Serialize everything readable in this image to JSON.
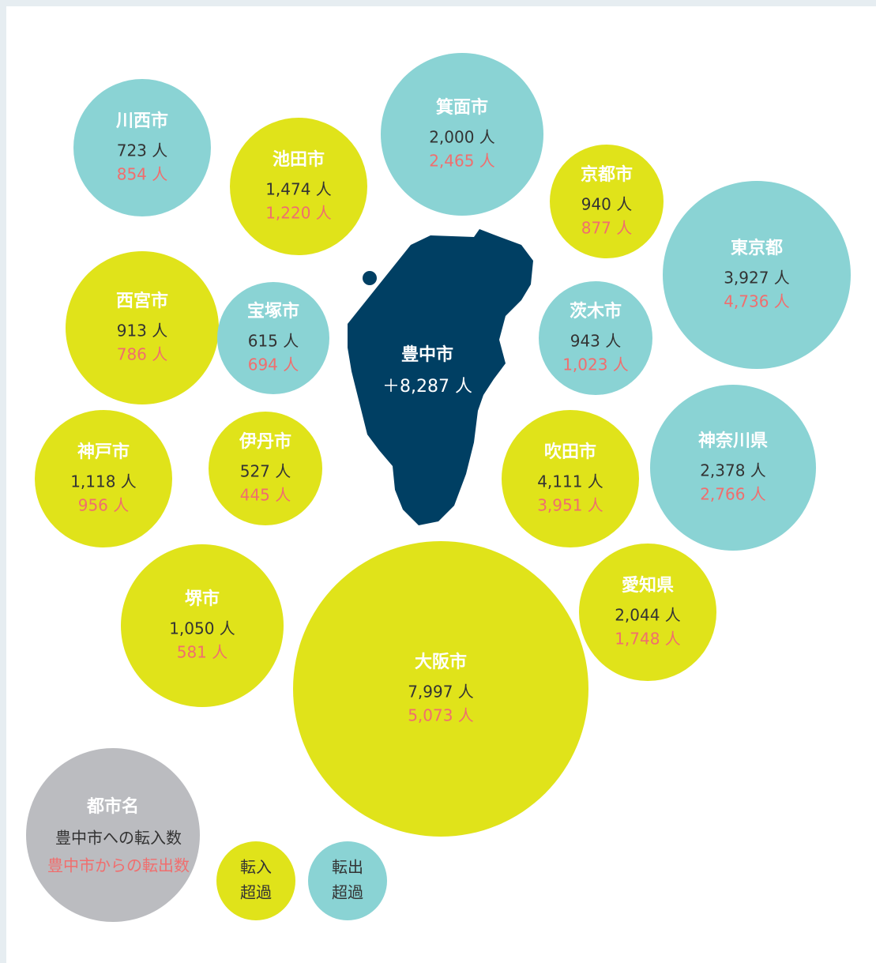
{
  "center": {
    "name": "豊中市",
    "value": "＋8,287 人"
  },
  "cities": [
    {
      "name": "川西市",
      "inflow": "723 人",
      "outflow": "854 人",
      "color": "#8ad3d4"
    },
    {
      "name": "池田市",
      "inflow": "1,474 人",
      "outflow": "1,220 人",
      "color": "#e0e31a"
    },
    {
      "name": "箕面市",
      "inflow": "2,000 人",
      "outflow": "2,465 人",
      "color": "#8ad3d4"
    },
    {
      "name": "京都市",
      "inflow": "940 人",
      "outflow": "877 人",
      "color": "#e0e31a"
    },
    {
      "name": "東京都",
      "inflow": "3,927 人",
      "outflow": "4,736 人",
      "color": "#8ad3d4"
    },
    {
      "name": "西宮市",
      "inflow": "913 人",
      "outflow": "786 人",
      "color": "#e0e31a"
    },
    {
      "name": "宝塚市",
      "inflow": "615 人",
      "outflow": "694 人",
      "color": "#8ad3d4"
    },
    {
      "name": "茨木市",
      "inflow": "943 人",
      "outflow": "1,023 人",
      "color": "#8ad3d4"
    },
    {
      "name": "神戸市",
      "inflow": "1,118 人",
      "outflow": "956 人",
      "color": "#e0e31a"
    },
    {
      "name": "伊丹市",
      "inflow": "527 人",
      "outflow": "445 人",
      "color": "#e0e31a"
    },
    {
      "name": "吹田市",
      "inflow": "4,111 人",
      "outflow": "3,951 人",
      "color": "#e0e31a"
    },
    {
      "name": "神奈川県",
      "inflow": "2,378 人",
      "outflow": "2,766 人",
      "color": "#8ad3d4"
    },
    {
      "name": "堺市",
      "inflow": "1,050 人",
      "outflow": "581 人",
      "color": "#e0e31a"
    },
    {
      "name": "大阪市",
      "inflow": "7,997 人",
      "outflow": "5,073 人",
      "color": "#e0e31a"
    },
    {
      "name": "愛知県",
      "inflow": "2,044 人",
      "outflow": "1,748 人",
      "color": "#e0e31a"
    }
  ],
  "legend": {
    "sample": {
      "name": "都市名",
      "inflow": "豊中市への転入数",
      "outflow": "豊中市からの転出数",
      "color": "#bbbcc0"
    },
    "items": [
      {
        "lines": [
          "転入",
          "超過"
        ],
        "color": "#e0e31a"
      },
      {
        "lines": [
          "転出",
          "超過"
        ],
        "color": "#8ad3d4"
      }
    ]
  }
}
